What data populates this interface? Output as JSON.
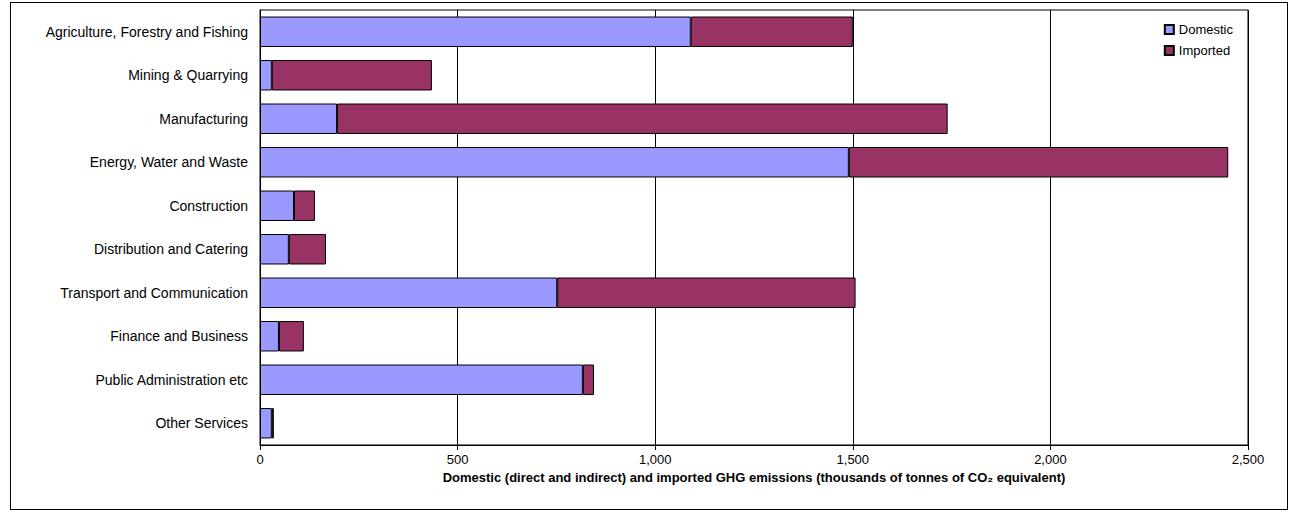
{
  "chart_data": {
    "type": "bar",
    "orientation": "horizontal",
    "stacked": true,
    "grid": true,
    "legend": "upper right",
    "x_label": "Domestic (direct and indirect) and imported GHG emissions (thousands of tonnes of CO₂ equivalent)",
    "categories": [
      "Agriculture, Forestry and Fishing",
      "Mining & Quarrying",
      "Manufacturing",
      "Energy, Water and Waste",
      "Construction",
      "Distribution and Catering",
      "Transport and Communication",
      "Finance and Business",
      "Public Administration etc",
      "Other Services"
    ],
    "series": [
      {
        "name": "Domestic",
        "color": "#9999ff",
        "values": [
          1090,
          30,
          195,
          1490,
          86,
          73,
          752,
          48,
          817,
          30
        ]
      },
      {
        "name": "Imported",
        "color": "#993366",
        "values": [
          410,
          405,
          1545,
          960,
          53,
          94,
          755,
          63,
          28,
          5
        ]
      }
    ],
    "xlim": [
      0,
      2500
    ],
    "xticks": [
      0,
      500,
      {
        "value": 1000,
        "label": "1,000"
      },
      {
        "value": 1500,
        "label": "1,500"
      },
      {
        "value": 2000,
        "label": "2,000"
      },
      {
        "value": 2500,
        "label": "2,500"
      }
    ]
  }
}
